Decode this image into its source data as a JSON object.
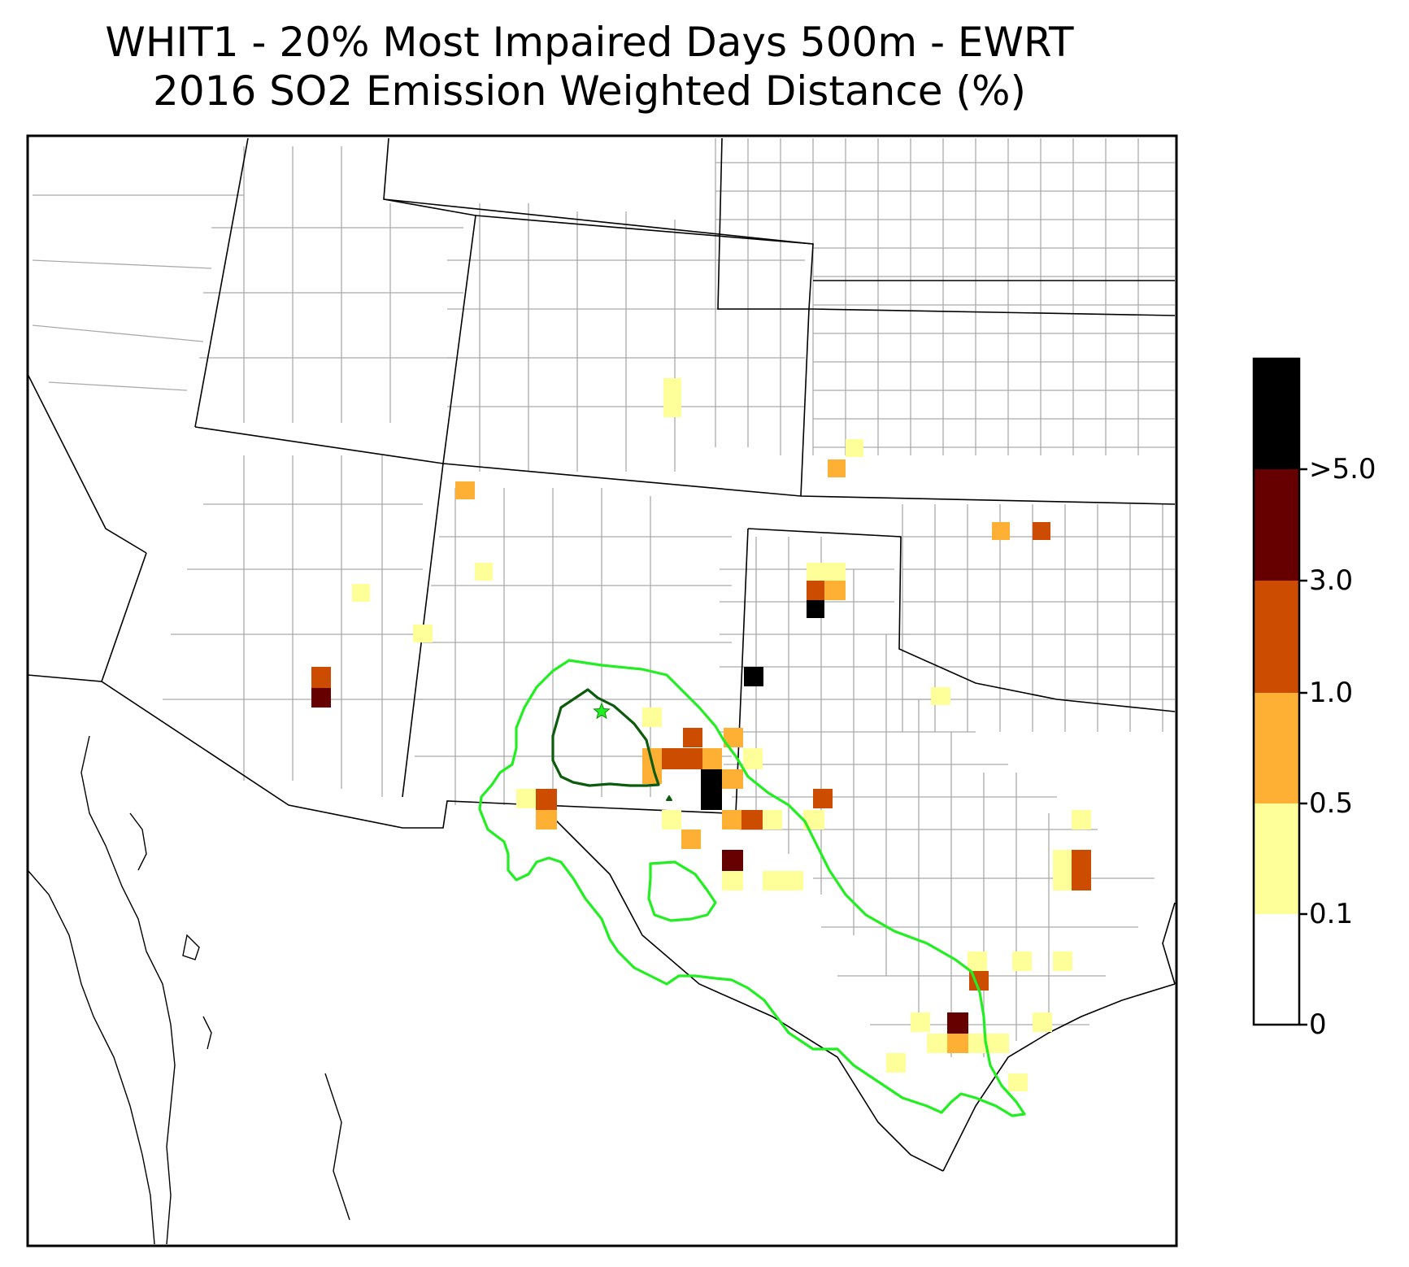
{
  "title": {
    "line1": "WHIT1 - 20% Most Impaired Days 500m - EWRT",
    "line2": "2016 SO2 Emission Weighted Distance (%)"
  },
  "colorbar": {
    "ticks": [
      "0",
      "0.1",
      "0.5",
      "1.0",
      "3.0",
      ">5.0"
    ],
    "bins": [
      {
        "label": "0 - 0.1",
        "color": "#ffffff"
      },
      {
        "label": "0.1 - 0.5",
        "color": "#ffff99"
      },
      {
        "label": "0.5 - 1.0",
        "color": "#fdb034"
      },
      {
        "label": "1.0 - 3.0",
        "color": "#cc4c02"
      },
      {
        "label": "3.0 - 5.0",
        "color": "#660000"
      },
      {
        "label": ">5.0",
        "color": "#000000"
      }
    ]
  },
  "colors": {
    "state_border": "#000000",
    "county_border": "#aaaaaa",
    "contour_outer": "#22ee22",
    "contour_inner": "#0d5c0d",
    "site_marker": "#22ee22"
  },
  "site_marker_icon": "star-icon"
}
